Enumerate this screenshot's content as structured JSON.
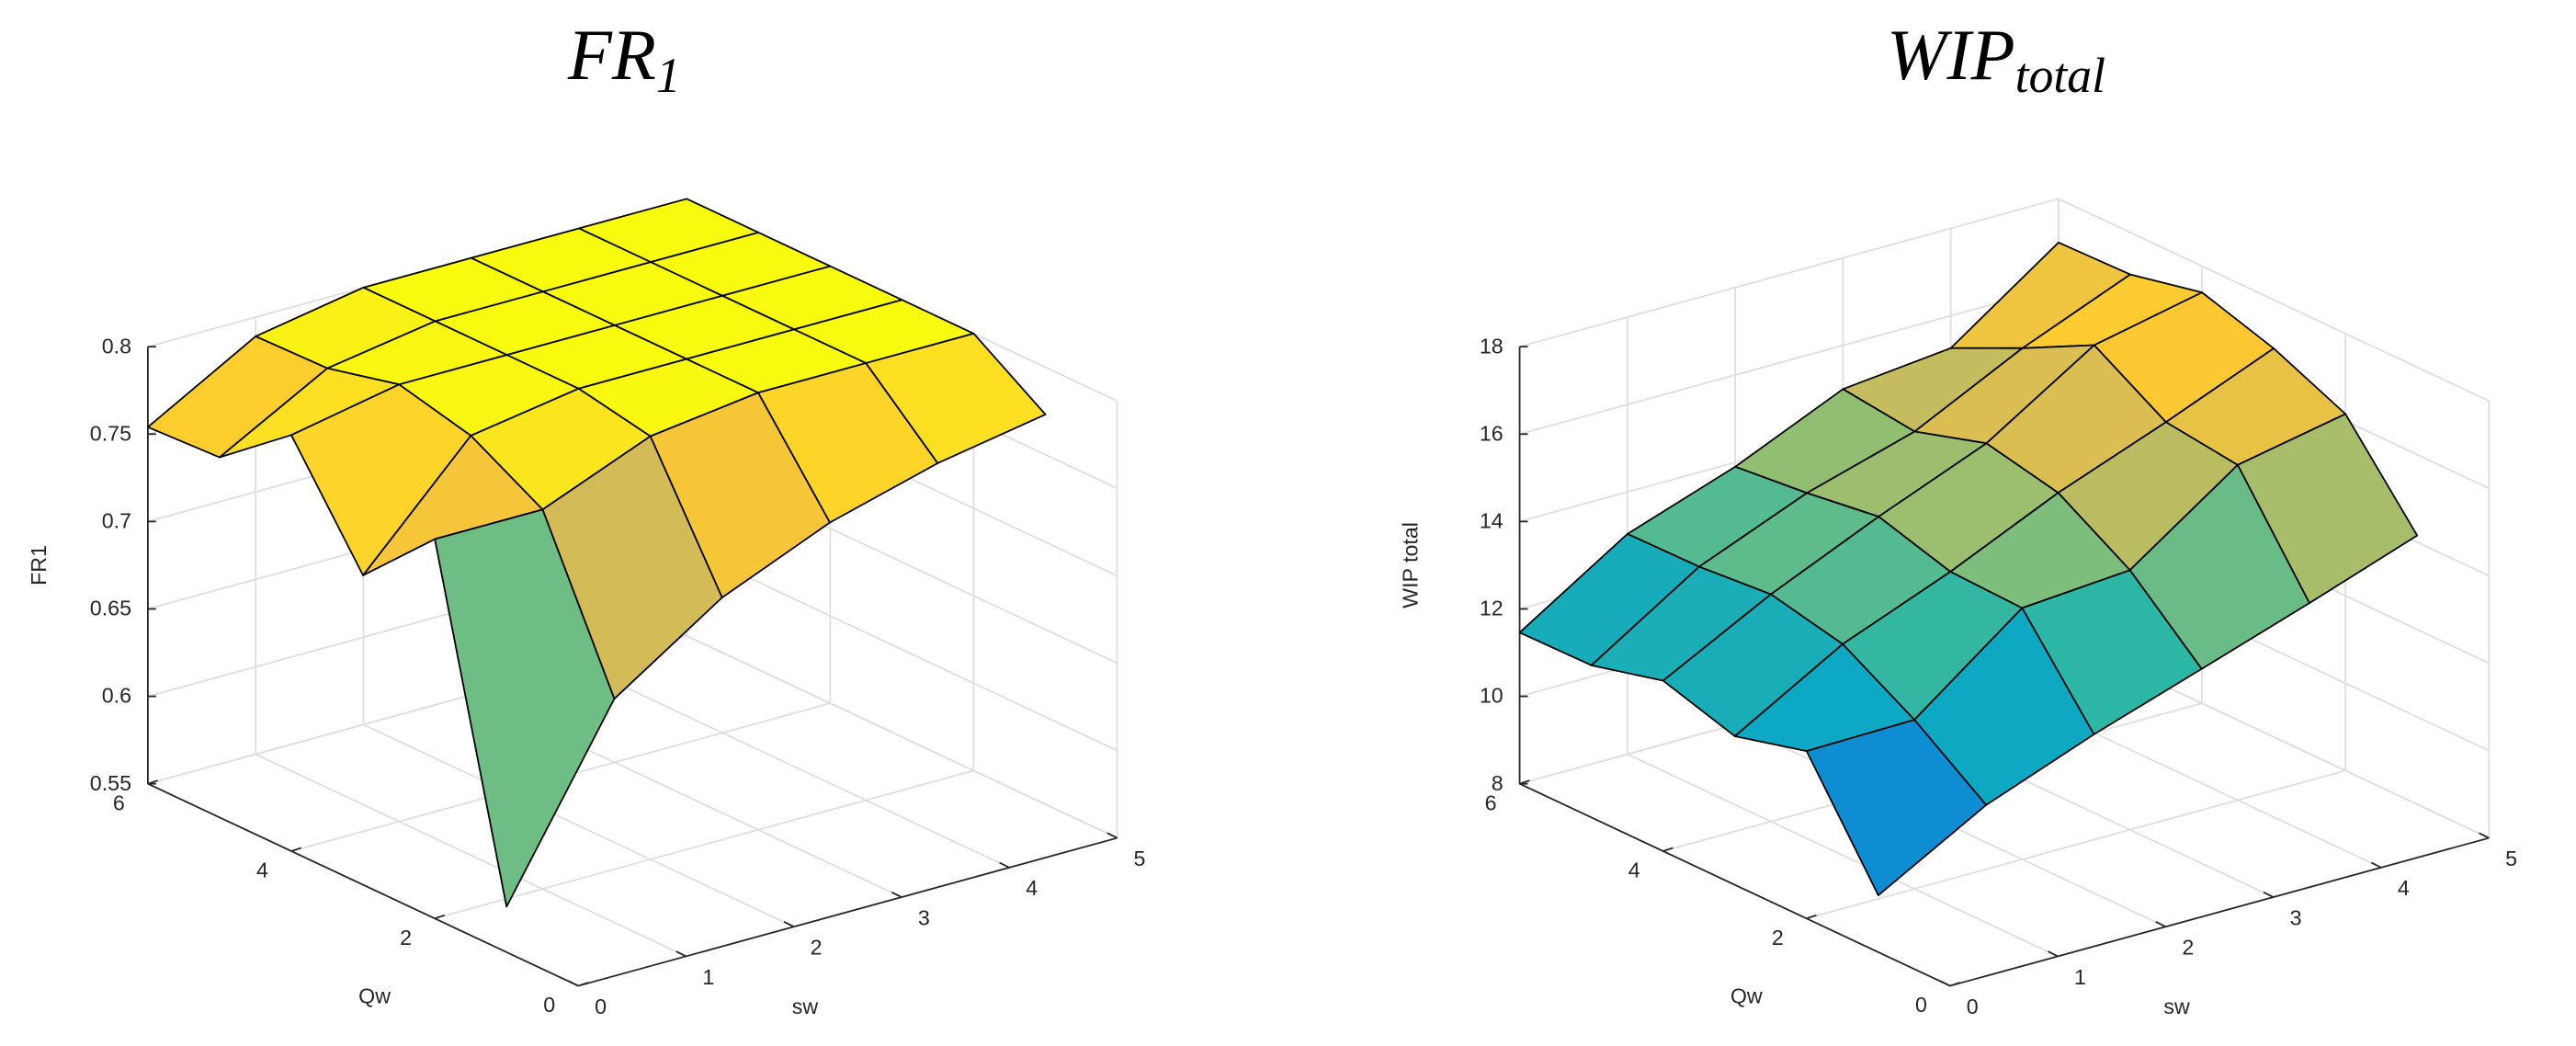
{
  "chart_data": [
    {
      "type": "surface",
      "title": "FR",
      "title_subscript": "1",
      "xlabel": "sw",
      "ylabel": "Qw",
      "zlabel": "FR1",
      "x": [
        0,
        1,
        2,
        3,
        4,
        5
      ],
      "y": [
        1,
        2,
        3,
        4,
        5,
        6
      ],
      "z": [
        [
          0.576,
          0.678,
          0.719,
          0.745,
          0.762,
          0.773
        ],
        [
          0.767,
          0.767,
          0.792,
          0.8,
          0.8,
          0.8
        ],
        [
          0.727,
          0.79,
          0.8,
          0.8,
          0.8,
          0.8
        ],
        [
          0.788,
          0.8,
          0.8,
          0.8,
          0.8,
          0.8
        ],
        [
          0.756,
          0.79,
          0.8,
          0.8,
          0.8,
          0.8
        ],
        [
          0.754,
          0.789,
          0.8,
          0.8,
          0.8,
          0.8
        ]
      ],
      "xlim": [
        0,
        5
      ],
      "ylim": [
        0,
        6
      ],
      "zlim": [
        0.55,
        0.8
      ],
      "xticks": [
        0,
        1,
        2,
        3,
        4,
        5
      ],
      "yticks": [
        0,
        2,
        4,
        6
      ],
      "zticks": [
        0.55,
        0.6,
        0.65,
        0.7,
        0.75,
        0.8
      ],
      "grid": true,
      "colormap": "parula",
      "edge_color": "#000000"
    },
    {
      "type": "surface",
      "title": "WIP",
      "title_subscript": "total",
      "xlabel": "sw",
      "ylabel": "Qw",
      "zlabel": "WIP total",
      "x": [
        0,
        1,
        2,
        3,
        4,
        5
      ],
      "y": [
        1,
        2,
        3,
        4,
        5,
        6
      ],
      "z": [
        [
          9.3,
          10.69,
          11.63,
          12.45,
          13.28,
          14.15
        ],
        [
          11.83,
          11.87,
          13.75,
          13.94,
          15.67,
          16.16
        ],
        [
          11.4,
          12.83,
          13.81,
          14.94,
          15.88,
          16.89
        ],
        [
          11.9,
          13.2,
          14.3,
          15.3,
          16.87,
          17.4
        ],
        [
          11.48,
          13.06,
          14.07,
          14.8,
          16.03,
          17.04
        ],
        [
          11.46,
          13.04,
          13.9,
          15.0,
          15.26,
          17.0
        ]
      ],
      "xlim": [
        0,
        5
      ],
      "ylim": [
        0,
        6
      ],
      "zlim": [
        8,
        18
      ],
      "xticks": [
        0,
        1,
        2,
        3,
        4,
        5
      ],
      "yticks": [
        0,
        2,
        4,
        6
      ],
      "zticks": [
        8,
        10,
        12,
        14,
        16,
        18
      ],
      "grid": true,
      "colormap": "parula",
      "edge_color": "#000000"
    }
  ]
}
